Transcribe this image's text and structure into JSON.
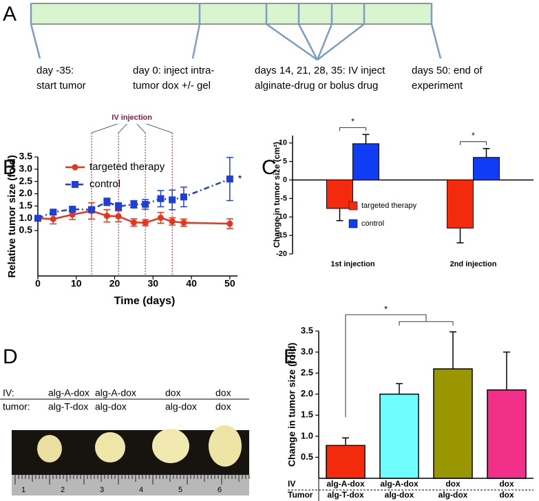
{
  "panel_labels": [
    "A",
    "B",
    "C",
    "D",
    "E"
  ],
  "timeline": {
    "events": [
      [
        "day -35:",
        "start tumor"
      ],
      [
        "day 0: inject intra-",
        "tumor dox +/- gel"
      ],
      [
        "days 14, 21, 28, 35: IV inject",
        "alginate-drug or bolus drug"
      ],
      [
        "days 50: end of",
        "experiment"
      ]
    ]
  },
  "chart_data": [
    {
      "type": "line",
      "xlabel": "Time (days)",
      "ylabel": "Relative tumor size (fold)",
      "annotation": "IV injection",
      "reference_lines": [
        14,
        21,
        28,
        35
      ],
      "significance": "*",
      "legend": "upper left",
      "x": [
        0,
        4,
        9,
        14,
        18,
        21,
        25,
        28,
        32,
        35,
        38,
        50
      ],
      "series": [
        {
          "name": "targeted therapy",
          "color": "#e8341c",
          "marker": "circle",
          "linestyle": "solid",
          "values": [
            1.0,
            0.97,
            1.15,
            1.3,
            1.1,
            1.08,
            0.83,
            0.82,
            1.02,
            0.87,
            0.82,
            0.78
          ],
          "errors": [
            0.05,
            0.2,
            0.2,
            0.33,
            0.25,
            0.22,
            0.15,
            0.12,
            0.22,
            0.15,
            0.15,
            0.2
          ]
        },
        {
          "name": "control",
          "color": "#1f3fd6",
          "marker": "square",
          "linestyle": "dashdot",
          "values": [
            1.0,
            1.25,
            1.37,
            1.35,
            1.67,
            1.48,
            1.57,
            1.57,
            1.8,
            1.75,
            1.87,
            2.6
          ],
          "errors": [
            0.05,
            0.08,
            0.1,
            0.12,
            0.15,
            0.15,
            0.15,
            0.2,
            0.33,
            0.4,
            0.4,
            0.88
          ]
        }
      ],
      "xlim": [
        0,
        52
      ],
      "xticks": [
        0,
        10,
        20,
        30,
        40,
        50
      ],
      "ylim": [
        -1.35,
        3.5
      ],
      "yticks": [
        0.5,
        {
          "value": 1,
          "label": "1.0"
        },
        1.5,
        {
          "value": 2,
          "label": "2.0"
        },
        2.5,
        {
          "value": 3,
          "label": "3.0"
        },
        3.5
      ]
    },
    {
      "type": "bar",
      "ylabel": "Change in tumor size (cm²)",
      "categories": [
        "1st injection",
        "2nd injection"
      ],
      "series": [
        {
          "name": "targeted therapy",
          "color": "#f42a0c",
          "values": [
            -7.7,
            -13
          ],
          "errors": [
            3.3,
            4
          ]
        },
        {
          "name": "control",
          "color": "#0f3df5",
          "values": [
            9.8,
            6.1
          ],
          "errors": [
            2.5,
            2.4
          ]
        }
      ],
      "significance": [
        "*",
        "*"
      ],
      "legend": "lower left",
      "ylim": [
        -20,
        12
      ],
      "yticks": [
        -20,
        -15,
        -10,
        -5,
        0,
        5,
        10
      ]
    },
    {
      "type": "bar",
      "ylabel": "Change in tumor size (fold)",
      "category_rows": [
        {
          "name": "IV",
          "labels": [
            "alg-A-dox",
            "alg-A-dox",
            "dox",
            "dox"
          ]
        },
        {
          "name": "Tumor",
          "labels": [
            "alg-T-dox",
            "alg-dox",
            "alg-dox",
            "dox"
          ]
        }
      ],
      "values": [
        0.78,
        2.0,
        2.6,
        2.1
      ],
      "errors": [
        0.18,
        0.25,
        0.88,
        0.9
      ],
      "colors": [
        "#f42a0c",
        "#6ffcfc",
        "#9a9600",
        "#f2308a"
      ],
      "significance": "*",
      "ylim": [
        0,
        3.5
      ],
      "yticks": [
        0.5,
        {
          "value": 1,
          "label": "1.0"
        },
        1.5,
        {
          "value": 2,
          "label": "2.0"
        },
        2.5,
        {
          "value": 3,
          "label": "3.0"
        },
        3.5
      ]
    }
  ],
  "photo": {
    "rows": [
      {
        "name": "IV:",
        "labels": [
          "alg-A-dox",
          "alg-A-dox",
          "dox",
          "dox"
        ]
      },
      {
        "name": "tumor:",
        "labels": [
          "alg-T-dox",
          "alg-dox",
          "alg-dox",
          "dox"
        ]
      }
    ],
    "ruler_labels": [
      "1",
      "2",
      "3",
      "4",
      "5",
      "6"
    ]
  }
}
